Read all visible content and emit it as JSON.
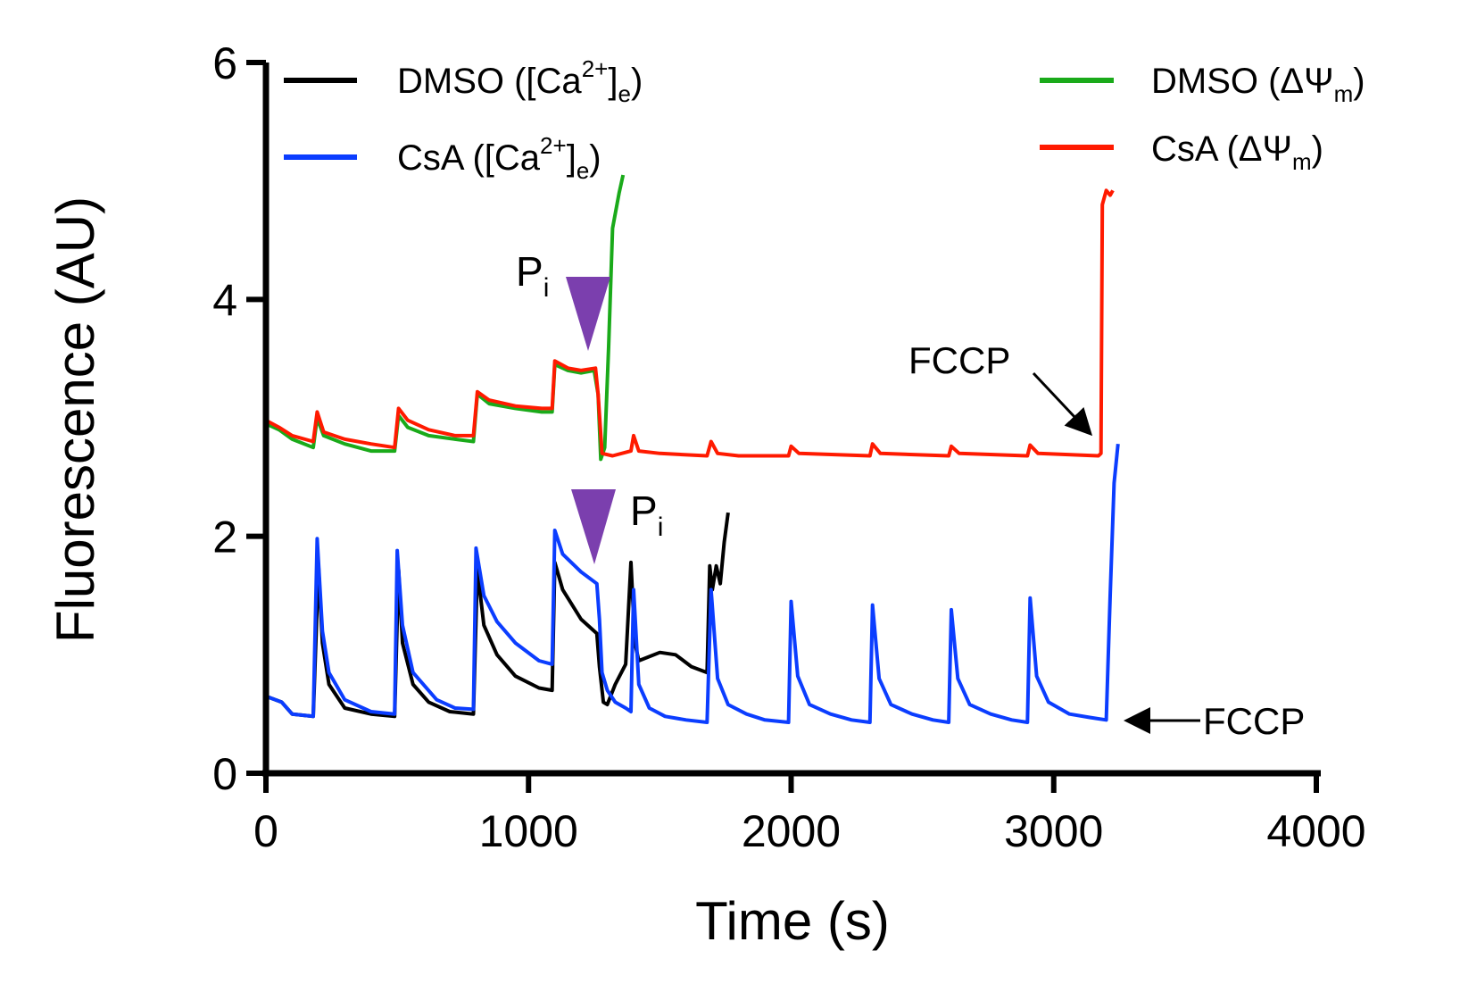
{
  "chart_data": {
    "type": "line",
    "xlabel": "Time (s)",
    "ylabel": "Fluorescence (AU)",
    "xlim": [
      0,
      4000
    ],
    "ylim": [
      0,
      6
    ],
    "x_ticks": [
      "0",
      "1000",
      "2000",
      "3000",
      "4000"
    ],
    "y_ticks": [
      "0",
      "2",
      "4",
      "6"
    ],
    "legend": {
      "placement": "top",
      "entries": [
        {
          "key": "dmso_ca",
          "name": "DMSO",
          "main": "DMSO ([Ca",
          "sup": "2+",
          "close": "]",
          "sub": "e",
          "tail": ")",
          "color": "#000000"
        },
        {
          "key": "csa_ca",
          "name": "CsA",
          "main": "CsA ([Ca",
          "sup": "2+",
          "close": "]",
          "sub": "e",
          "tail": ")",
          "color": "#0b3dff"
        },
        {
          "key": "dmso_psi",
          "name": "DMSO",
          "main": "DMSO (ΔΨ",
          "sub": "m",
          "tail": ")",
          "color": "#1aaa1a"
        },
        {
          "key": "csa_psi",
          "name": "CsA",
          "main": "CsA (ΔΨ",
          "sub": "m",
          "tail": ")",
          "color": "#ff1a00"
        }
      ]
    },
    "annotations": [
      {
        "key": "pi_upper",
        "text": "P",
        "sub": "i",
        "x": 1220,
        "y": 3.6,
        "type": "triangle-down",
        "color": "#7b3fae"
      },
      {
        "key": "pi_lower",
        "text": "P",
        "sub": "i",
        "x": 1240,
        "y": 1.8,
        "type": "triangle-down",
        "color": "#7b3fae"
      },
      {
        "key": "fccp_upper",
        "text": "FCCP",
        "x": 3180,
        "y": 2.72,
        "type": "arrow"
      },
      {
        "key": "fccp_lower",
        "text": "FCCP",
        "x": 3250,
        "y": 0.45,
        "type": "arrow"
      }
    ],
    "series": [
      {
        "name": "DMSO ([Ca2+]e)",
        "color": "#000000",
        "segments": [
          [
            [
              0,
              0.65
            ],
            [
              60,
              0.6
            ],
            [
              100,
              0.5
            ],
            [
              180,
              0.48
            ],
            [
              200,
              1.75
            ],
            [
              215,
              1.1
            ],
            [
              240,
              0.75
            ],
            [
              300,
              0.55
            ],
            [
              400,
              0.5
            ],
            [
              490,
              0.48
            ],
            [
              505,
              1.72
            ],
            [
              520,
              1.1
            ],
            [
              560,
              0.75
            ],
            [
              620,
              0.6
            ],
            [
              700,
              0.52
            ],
            [
              790,
              0.5
            ],
            [
              805,
              1.72
            ],
            [
              830,
              1.25
            ],
            [
              880,
              1.0
            ],
            [
              950,
              0.82
            ],
            [
              1040,
              0.72
            ],
            [
              1090,
              0.7
            ],
            [
              1100,
              1.78
            ],
            [
              1130,
              1.55
            ],
            [
              1200,
              1.3
            ],
            [
              1260,
              1.18
            ],
            [
              1270,
              0.9
            ],
            [
              1285,
              0.6
            ],
            [
              1300,
              0.58
            ],
            [
              1330,
              0.75
            ],
            [
              1370,
              0.92
            ],
            [
              1390,
              1.78
            ],
            [
              1405,
              1.1
            ],
            [
              1420,
              0.95
            ],
            [
              1500,
              1.02
            ],
            [
              1560,
              1.0
            ],
            [
              1620,
              0.9
            ],
            [
              1680,
              0.85
            ],
            [
              1690,
              1.75
            ],
            [
              1700,
              1.55
            ],
            [
              1715,
              1.75
            ],
            [
              1730,
              1.6
            ],
            [
              1745,
              1.95
            ],
            [
              1760,
              2.2
            ]
          ]
        ]
      },
      {
        "name": "CsA ([Ca2+]e)",
        "color": "#0b3dff",
        "segments": [
          [
            [
              0,
              0.65
            ],
            [
              60,
              0.6
            ],
            [
              100,
              0.5
            ],
            [
              180,
              0.48
            ],
            [
              195,
              1.98
            ],
            [
              215,
              1.2
            ],
            [
              240,
              0.85
            ],
            [
              300,
              0.62
            ],
            [
              400,
              0.52
            ],
            [
              490,
              0.5
            ],
            [
              500,
              1.88
            ],
            [
              520,
              1.25
            ],
            [
              560,
              0.85
            ],
            [
              650,
              0.62
            ],
            [
              720,
              0.55
            ],
            [
              790,
              0.54
            ],
            [
              800,
              1.9
            ],
            [
              830,
              1.5
            ],
            [
              880,
              1.28
            ],
            [
              950,
              1.1
            ],
            [
              1040,
              0.95
            ],
            [
              1090,
              0.92
            ],
            [
              1100,
              2.05
            ],
            [
              1130,
              1.85
            ],
            [
              1200,
              1.7
            ],
            [
              1260,
              1.6
            ],
            [
              1270,
              1.3
            ],
            [
              1280,
              0.85
            ],
            [
              1300,
              0.7
            ],
            [
              1330,
              0.6
            ],
            [
              1370,
              0.55
            ],
            [
              1390,
              0.52
            ],
            [
              1400,
              1.55
            ],
            [
              1420,
              0.75
            ],
            [
              1460,
              0.55
            ],
            [
              1520,
              0.48
            ],
            [
              1600,
              0.45
            ],
            [
              1680,
              0.43
            ],
            [
              1695,
              1.55
            ],
            [
              1720,
              0.8
            ],
            [
              1760,
              0.58
            ],
            [
              1830,
              0.5
            ],
            [
              1900,
              0.45
            ],
            [
              1990,
              0.43
            ],
            [
              2000,
              1.45
            ],
            [
              2025,
              0.82
            ],
            [
              2070,
              0.58
            ],
            [
              2150,
              0.5
            ],
            [
              2230,
              0.45
            ],
            [
              2300,
              0.43
            ],
            [
              2310,
              1.42
            ],
            [
              2335,
              0.8
            ],
            [
              2380,
              0.58
            ],
            [
              2460,
              0.5
            ],
            [
              2540,
              0.45
            ],
            [
              2600,
              0.43
            ],
            [
              2610,
              1.38
            ],
            [
              2635,
              0.8
            ],
            [
              2680,
              0.58
            ],
            [
              2760,
              0.5
            ],
            [
              2840,
              0.45
            ],
            [
              2900,
              0.43
            ],
            [
              2910,
              1.48
            ],
            [
              2935,
              0.82
            ],
            [
              2980,
              0.6
            ],
            [
              3060,
              0.5
            ],
            [
              3140,
              0.47
            ],
            [
              3200,
              0.45
            ],
            [
              3215,
              1.5
            ],
            [
              3230,
              2.45
            ],
            [
              3245,
              2.78
            ]
          ]
        ]
      },
      {
        "name": "DMSO (ΔΨm)",
        "color": "#1aaa1a",
        "segments": [
          [
            [
              0,
              2.95
            ],
            [
              50,
              2.9
            ],
            [
              100,
              2.82
            ],
            [
              180,
              2.75
            ],
            [
              195,
              3.0
            ],
            [
              220,
              2.85
            ],
            [
              300,
              2.78
            ],
            [
              400,
              2.72
            ],
            [
              490,
              2.72
            ],
            [
              505,
              3.02
            ],
            [
              540,
              2.92
            ],
            [
              620,
              2.85
            ],
            [
              720,
              2.82
            ],
            [
              790,
              2.8
            ],
            [
              805,
              3.2
            ],
            [
              850,
              3.12
            ],
            [
              950,
              3.08
            ],
            [
              1050,
              3.05
            ],
            [
              1090,
              3.05
            ],
            [
              1100,
              3.45
            ],
            [
              1150,
              3.4
            ],
            [
              1200,
              3.38
            ],
            [
              1250,
              3.4
            ],
            [
              1265,
              3.2
            ],
            [
              1275,
              2.65
            ],
            [
              1290,
              2.75
            ],
            [
              1305,
              3.6
            ],
            [
              1320,
              4.6
            ],
            [
              1345,
              4.9
            ],
            [
              1360,
              5.05
            ]
          ]
        ]
      },
      {
        "name": "CsA (ΔΨm)",
        "color": "#ff1a00",
        "segments": [
          [
            [
              0,
              2.98
            ],
            [
              50,
              2.92
            ],
            [
              100,
              2.85
            ],
            [
              180,
              2.8
            ],
            [
              195,
              3.05
            ],
            [
              220,
              2.88
            ],
            [
              300,
              2.82
            ],
            [
              400,
              2.78
            ],
            [
              490,
              2.75
            ],
            [
              505,
              3.08
            ],
            [
              540,
              2.98
            ],
            [
              620,
              2.9
            ],
            [
              720,
              2.85
            ],
            [
              790,
              2.85
            ],
            [
              805,
              3.22
            ],
            [
              850,
              3.15
            ],
            [
              950,
              3.1
            ],
            [
              1050,
              3.08
            ],
            [
              1090,
              3.08
            ],
            [
              1100,
              3.48
            ],
            [
              1150,
              3.42
            ],
            [
              1200,
              3.4
            ],
            [
              1255,
              3.42
            ],
            [
              1265,
              3.2
            ],
            [
              1280,
              2.7
            ],
            [
              1320,
              2.68
            ],
            [
              1390,
              2.72
            ],
            [
              1400,
              2.85
            ],
            [
              1420,
              2.72
            ],
            [
              1500,
              2.7
            ],
            [
              1680,
              2.68
            ],
            [
              1695,
              2.8
            ],
            [
              1720,
              2.7
            ],
            [
              1800,
              2.68
            ],
            [
              1990,
              2.68
            ],
            [
              2000,
              2.76
            ],
            [
              2030,
              2.7
            ],
            [
              2300,
              2.68
            ],
            [
              2310,
              2.78
            ],
            [
              2340,
              2.7
            ],
            [
              2600,
              2.68
            ],
            [
              2610,
              2.76
            ],
            [
              2640,
              2.7
            ],
            [
              2900,
              2.68
            ],
            [
              2910,
              2.77
            ],
            [
              2940,
              2.7
            ],
            [
              3170,
              2.68
            ],
            [
              3180,
              2.7
            ],
            [
              3185,
              4.8
            ],
            [
              3200,
              4.92
            ],
            [
              3215,
              4.88
            ],
            [
              3225,
              4.92
            ]
          ]
        ]
      }
    ]
  }
}
